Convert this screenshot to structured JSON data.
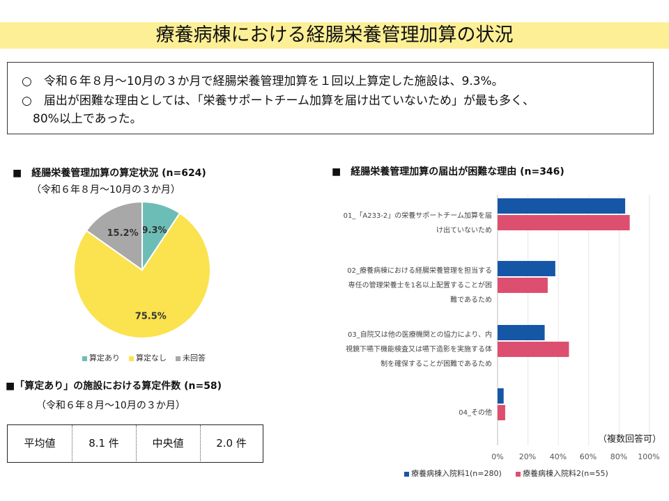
{
  "header": {
    "title": "療養病棟における経腸栄養管理加算の状況"
  },
  "summary": {
    "line1": "○　令和６年８月～10月の３か月で経腸栄養管理加算を１回以上算定した施設は、9.3%。",
    "line2": "○　届出が困難な理由としては、「栄養サポートチーム加算を届け出ていないため」が最も多く、",
    "line3": "80%以上であった。"
  },
  "left_top": {
    "heading": "■　経腸栄養管理加算の算定状況 (n=624)",
    "period": "（令和６年８月～10月の３か月）"
  },
  "left_bottom": {
    "heading": "■「算定あり」の施設における算定件数 (n=58)",
    "period": "（令和６年８月～10月の３か月）",
    "table": {
      "mean_label": "平均値",
      "mean_value": "8.1 件",
      "median_label": "中央値",
      "median_value": "2.0 件"
    }
  },
  "right": {
    "heading": "■　経腸栄養管理加算の届出が困難な理由 (n=346)",
    "note": "（複数回答可）"
  },
  "colors": {
    "pie_yes": "#6dbdb7",
    "pie_no": "#fbe24f",
    "pie_na": "#a8a8a8",
    "bar_s1": "#1656a7",
    "bar_s2": "#dd4f6e",
    "title_band": "#fcef95"
  },
  "chart_data": [
    {
      "type": "pie",
      "slices": [
        {
          "label": "算定あり",
          "value": 9.3,
          "text": "9.3%"
        },
        {
          "label": "算定なし",
          "value": 75.5,
          "text": "75.5%"
        },
        {
          "label": "未回答",
          "value": 15.2,
          "text": "15.2%"
        }
      ],
      "legend": [
        "算定あり",
        "算定なし",
        "未回答"
      ],
      "legend_position": "bottom"
    },
    {
      "type": "bar",
      "orientation": "horizontal",
      "categories": [
        [
          "01_「A233-2」の栄養サポートチーム加算を届",
          "け出ていないため"
        ],
        [
          "02_療養病棟における経腸栄養管理を担当する",
          "専任の管理栄養士を1名以上配置することが困",
          "難であるため"
        ],
        [
          "03_自院又は他の医療機関との協力により、内",
          "視鏡下嚥下機能検査又は嚥下造影を実施する体",
          "制を確保することが困難であるため"
        ],
        [
          "04_その他"
        ]
      ],
      "series": [
        {
          "name": "療養病棟入院料1(n=280)",
          "values": [
            84,
            38,
            31,
            4
          ]
        },
        {
          "name": "療養病棟入院料2(n=55)",
          "values": [
            87,
            33,
            47,
            5
          ]
        }
      ],
      "xlim": [
        0,
        100
      ],
      "x_ticks": [
        "0%",
        "20%",
        "40%",
        "60%",
        "80%",
        "100%"
      ],
      "legend_position": "bottom",
      "grid": true
    }
  ]
}
